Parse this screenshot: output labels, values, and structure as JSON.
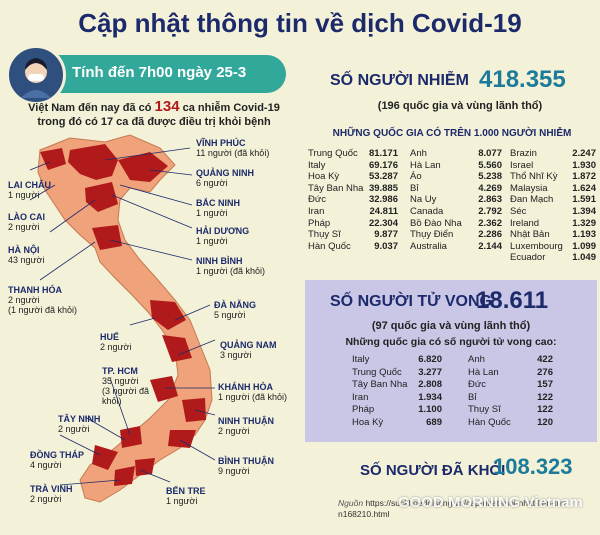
{
  "title": "Cập nhật thông tin về dịch Covid-19",
  "banner": "Tính đến 7h00 ngày 25-3",
  "vietnam": {
    "intro_a": "Việt Nam đến nay đã có",
    "intro_num": "134",
    "intro_b": "ca nhiễm Covid-19",
    "intro_line2": "trong đó có 17 ca đã được điều trị khỏi bệnh",
    "provinces": [
      {
        "name": "VĨNH PHÚC",
        "count": "11 người",
        "extra": "(đã khỏi)"
      },
      {
        "name": "QUẢNG NINH",
        "count": "6 người",
        "extra": ""
      },
      {
        "name": "LAI CHÂU",
        "count": "1 người",
        "extra": ""
      },
      {
        "name": "BẮC NINH",
        "count": "1 người",
        "extra": ""
      },
      {
        "name": "LÀO CAI",
        "count": "2 người",
        "extra": ""
      },
      {
        "name": "HẢI DƯƠNG",
        "count": "1 người",
        "extra": ""
      },
      {
        "name": "HÀ NỘI",
        "count": "43 người",
        "extra": ""
      },
      {
        "name": "NINH BÌNH",
        "count": "1 người",
        "extra": "(đã khỏi)"
      },
      {
        "name": "THANH HÓA",
        "count": "2 người",
        "extra": "(1 người đã khỏi)"
      },
      {
        "name": "ĐÀ NẴNG",
        "count": "5 người",
        "extra": ""
      },
      {
        "name": "HUẾ",
        "count": "2 người",
        "extra": ""
      },
      {
        "name": "QUẢNG NAM",
        "count": "3 người",
        "extra": ""
      },
      {
        "name": "TP. HCM",
        "count": "35 người",
        "extra": "(3 người đã khỏi)"
      },
      {
        "name": "KHÁNH HÒA",
        "count": "1 người",
        "extra": "(đã khỏi)"
      },
      {
        "name": "TÂY NINH",
        "count": "2 người",
        "extra": ""
      },
      {
        "name": "NINH THUẬN",
        "count": "2 người",
        "extra": ""
      },
      {
        "name": "ĐỒNG THÁP",
        "count": "4 người",
        "extra": ""
      },
      {
        "name": "BÌNH THUẬN",
        "count": "9 người",
        "extra": ""
      },
      {
        "name": "TRÀ VINH",
        "count": "2 người",
        "extra": ""
      },
      {
        "name": "BẾN TRE",
        "count": "1 người",
        "extra": ""
      }
    ]
  },
  "infected": {
    "heading": "SỐ NGƯỜI NHIỄM",
    "number": "418.355",
    "sub": "(196 quốc gia và vùng lãnh thổ)",
    "list_title": "NHỮNG QUỐC GIA CÓ TRÊN 1.000 NGƯỜI NHIỄM",
    "col1": [
      [
        "Trung Quốc",
        "81.171"
      ],
      [
        "Italy",
        "69.176"
      ],
      [
        "Hoa Kỳ",
        "53.287"
      ],
      [
        "Tây Ban Nha",
        "39.885"
      ],
      [
        "Đức",
        "32.986"
      ],
      [
        "Iran",
        "24.811"
      ],
      [
        "Pháp",
        "22.304"
      ],
      [
        "Thụy Sĩ",
        "9.877"
      ],
      [
        "Hàn Quốc",
        "9.037"
      ]
    ],
    "col2": [
      [
        "Anh",
        "8.077"
      ],
      [
        "Hà Lan",
        "5.560"
      ],
      [
        "Áo",
        "5.238"
      ],
      [
        "Bỉ",
        "4.269"
      ],
      [
        "Na Uy",
        "2.863"
      ],
      [
        "Canada",
        "2.792"
      ],
      [
        "Bồ Đào Nha",
        "2.362"
      ],
      [
        "Thụy Điển",
        "2.286"
      ],
      [
        "Australia",
        "2.144"
      ]
    ],
    "col3": [
      [
        "Brazin",
        "2.247"
      ],
      [
        "Israel",
        "1.930"
      ],
      [
        "Thổ Nhĩ Kỳ",
        "1.872"
      ],
      [
        "Malaysia",
        "1.624"
      ],
      [
        "Đan Mạch",
        "1.591"
      ],
      [
        "Séc",
        "1.394"
      ],
      [
        "Ireland",
        "1.329"
      ],
      [
        "Nhật Bản",
        "1.193"
      ],
      [
        "Luxembourg",
        "1.099"
      ],
      [
        "Ecuador",
        "1.049"
      ]
    ]
  },
  "deaths": {
    "heading": "SỐ NGƯỜI TỬ VONG",
    "number": "18.611",
    "sub": "(97 quốc gia và vùng lãnh thổ)",
    "list_title": "Những quốc gia có số người tử vong cao:",
    "col1": [
      [
        "Italy",
        "6.820"
      ],
      [
        "Trung Quốc",
        "3.277"
      ],
      [
        "Tây Ban Nha",
        "2.808"
      ],
      [
        "Iran",
        "1.934"
      ],
      [
        "Pháp",
        "1.100"
      ],
      [
        "Hoa Kỳ",
        "689"
      ]
    ],
    "col2": [
      [
        "Anh",
        "422"
      ],
      [
        "Hà Lan",
        "276"
      ],
      [
        "Đức",
        "157"
      ],
      [
        "Bỉ",
        "122"
      ],
      [
        "Thụy Sĩ",
        "122"
      ],
      [
        "Hàn Quốc",
        "120"
      ]
    ]
  },
  "recovered": {
    "heading": "SỐ NGƯỜI ĐÃ KHỎI",
    "number": "108.323"
  },
  "source": {
    "label": "Nguồn",
    "text": "https://suckhoedoisong.vn/cap-nhat-moi-nhat-lien-tuc-n168210.html"
  },
  "watermark": "GOOD MORNING Vietnam",
  "colors": {
    "title": "#1c2a6b",
    "banner": "#32a89a",
    "map_affected": "#b11a1a",
    "map_other": "#f0a37a",
    "death_box": "#c9c6e6"
  },
  "icons": {
    "virus_mask": "masked-person-icon"
  }
}
